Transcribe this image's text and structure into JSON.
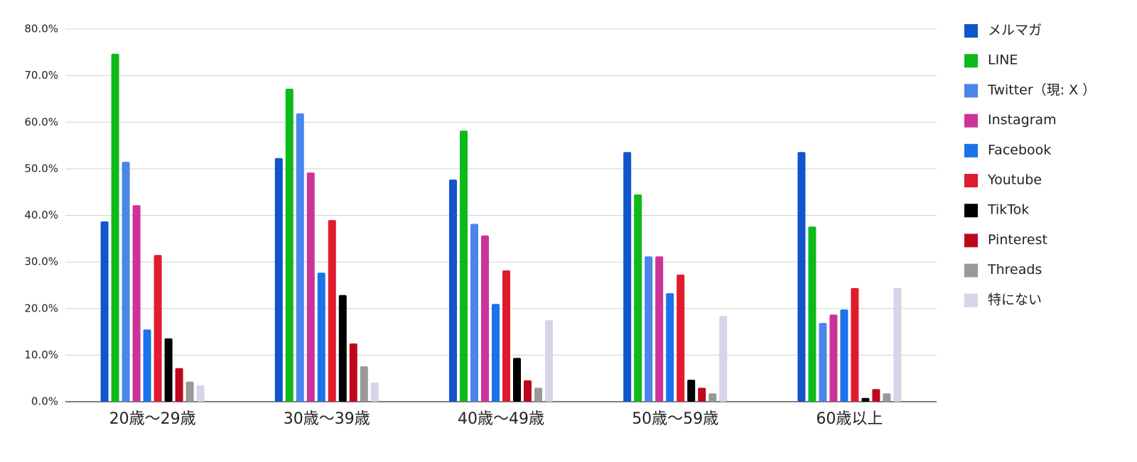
{
  "chart_data": {
    "type": "bar",
    "categories": [
      "20歳〜29歳",
      "30歳〜39歳",
      "40歳〜49歳",
      "50歳〜59歳",
      "60歳以上"
    ],
    "series": [
      {
        "name": "メルマガ",
        "color": "#1155cc",
        "values": [
          38.7,
          52.3,
          47.7,
          53.6,
          53.6
        ]
      },
      {
        "name": "LINE",
        "color": "#0dba1a",
        "values": [
          74.7,
          67.2,
          58.2,
          44.5,
          37.6
        ]
      },
      {
        "name": "Twitter（現: X ）",
        "color": "#4a86e8",
        "values": [
          51.5,
          61.9,
          38.2,
          31.2,
          16.9
        ]
      },
      {
        "name": "Instagram",
        "color": "#cc3399",
        "values": [
          42.2,
          49.2,
          35.7,
          31.2,
          18.7
        ]
      },
      {
        "name": "Facebook",
        "color": "#1a73e8",
        "values": [
          15.5,
          27.7,
          21.0,
          23.3,
          19.8
        ]
      },
      {
        "name": "Youtube",
        "color": "#e01b2e",
        "values": [
          31.5,
          39.0,
          28.2,
          27.3,
          24.4
        ]
      },
      {
        "name": "TikTok",
        "color": "#000000",
        "values": [
          13.6,
          22.9,
          9.4,
          4.7,
          0.8
        ]
      },
      {
        "name": "Pinterest",
        "color": "#bd081c",
        "values": [
          7.2,
          12.5,
          4.6,
          3.0,
          2.7
        ]
      },
      {
        "name": "Threads",
        "color": "#999999",
        "values": [
          4.3,
          7.6,
          3.0,
          1.8,
          1.8
        ]
      },
      {
        "name": "特にない",
        "color": "#d9d2e9",
        "values": [
          3.5,
          4.1,
          17.5,
          18.4,
          24.4
        ]
      }
    ],
    "ylim": [
      0,
      80
    ],
    "yticks": [
      {
        "value": 0,
        "label": "0.0%"
      },
      {
        "value": 10,
        "label": "10.0%"
      },
      {
        "value": 20,
        "label": "20.0%"
      },
      {
        "value": 30,
        "label": "30.0%"
      },
      {
        "value": 40,
        "label": "40.0%"
      },
      {
        "value": 50,
        "label": "50.0%"
      },
      {
        "value": 60,
        "label": "60.0%"
      },
      {
        "value": 70,
        "label": "70.0%"
      },
      {
        "value": 80,
        "label": "80.0%"
      }
    ],
    "grid": true,
    "legend": "right"
  }
}
